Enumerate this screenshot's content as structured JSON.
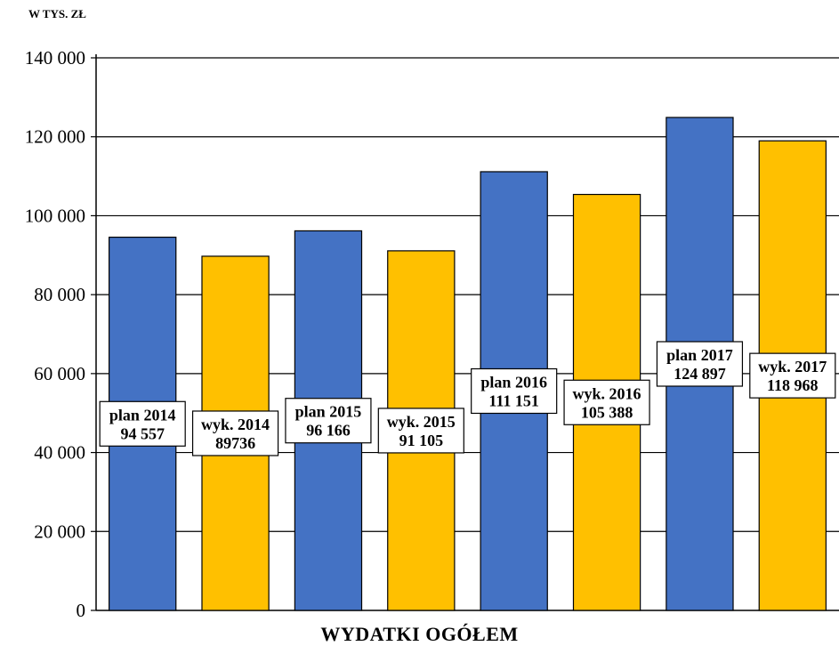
{
  "chart_data": {
    "type": "bar",
    "unit_label": "W TYS. ZŁ",
    "xlabel": "WYDATKI OGÓŁEM",
    "ylim": [
      0,
      140000
    ],
    "yticks": [
      0,
      20000,
      40000,
      60000,
      80000,
      100000,
      120000,
      140000
    ],
    "ytick_labels": [
      "0",
      "20 000",
      "40 000",
      "60 000",
      "80 000",
      "100 000",
      "120 000",
      "140 000"
    ],
    "colors": {
      "plan": "#4472C4",
      "wyk": "#FFC000"
    },
    "bars": [
      {
        "kind": "plan",
        "value": 94557,
        "label1": "plan 2014",
        "label2": "94 557"
      },
      {
        "kind": "wyk",
        "value": 89736,
        "label1": "wyk. 2014",
        "label2": "89736"
      },
      {
        "kind": "plan",
        "value": 96166,
        "label1": "plan 2015",
        "label2": "96 166"
      },
      {
        "kind": "wyk",
        "value": 91105,
        "label1": "wyk. 2015",
        "label2": "91 105"
      },
      {
        "kind": "plan",
        "value": 111151,
        "label1": "plan 2016",
        "label2": "111 151"
      },
      {
        "kind": "wyk",
        "value": 105388,
        "label1": "wyk. 2016",
        "label2": "105 388"
      },
      {
        "kind": "plan",
        "value": 124897,
        "label1": "plan 2017",
        "label2": "124 897"
      },
      {
        "kind": "wyk",
        "value": 118968,
        "label1": "wyk. 2017",
        "label2": "118 968"
      }
    ],
    "grid": true
  }
}
